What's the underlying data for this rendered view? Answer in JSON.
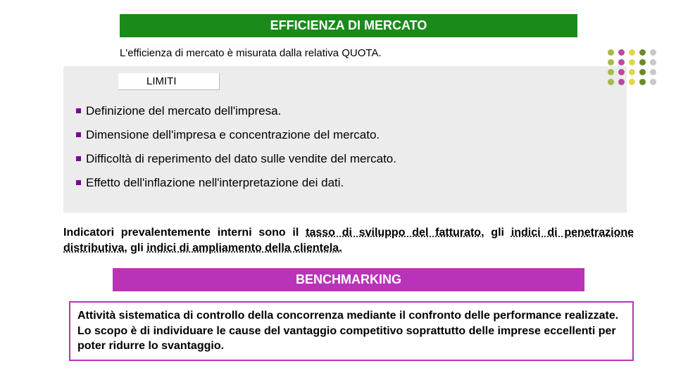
{
  "header_green": "EFFICIENZA DI MERCATO",
  "intro": "L'efficienza di mercato è misurata dalla relativa QUOTA.",
  "limiti_label": "LIMITI",
  "limits": [
    "Definizione del mercato dell'impresa.",
    "Dimensione dell'impresa e concentrazione del mercato.",
    "Difficoltà di reperimento del dato sulle vendite del mercato.",
    "Effetto dell'inflazione nell'interpretazione dei dati."
  ],
  "indicators": {
    "pre1": "Indicatori prevalentemente interni sono il ",
    "u1": "tasso di sviluppo del fatturato",
    "mid1": ", gli ",
    "u2": "indici di penetrazione distributiva",
    "mid2": ", gli ",
    "u3": "indici di ampliamento della clientela."
  },
  "header_purple": "BENCHMARKING",
  "purple_box": "Attività sistematica di controllo della concorrenza mediante il confronto delle performance realizzate.\nLo scopo è di individuare le cause del vantaggio competitivo soprattutto delle imprese eccellenti per poter ridurre lo svantaggio.",
  "deco_colors": [
    "#a8b84a",
    "#b94a9e",
    "#e0d84a",
    "#6a8a2a",
    "#c8c8c8"
  ],
  "colors": {
    "green": "#1a8a1a",
    "purple": "#b933b9",
    "bullet": "#7a0099",
    "gray_bg": "#ececec"
  },
  "typography": {
    "header_fs": 18,
    "body_fs": 16,
    "bullet_fs": 17
  }
}
